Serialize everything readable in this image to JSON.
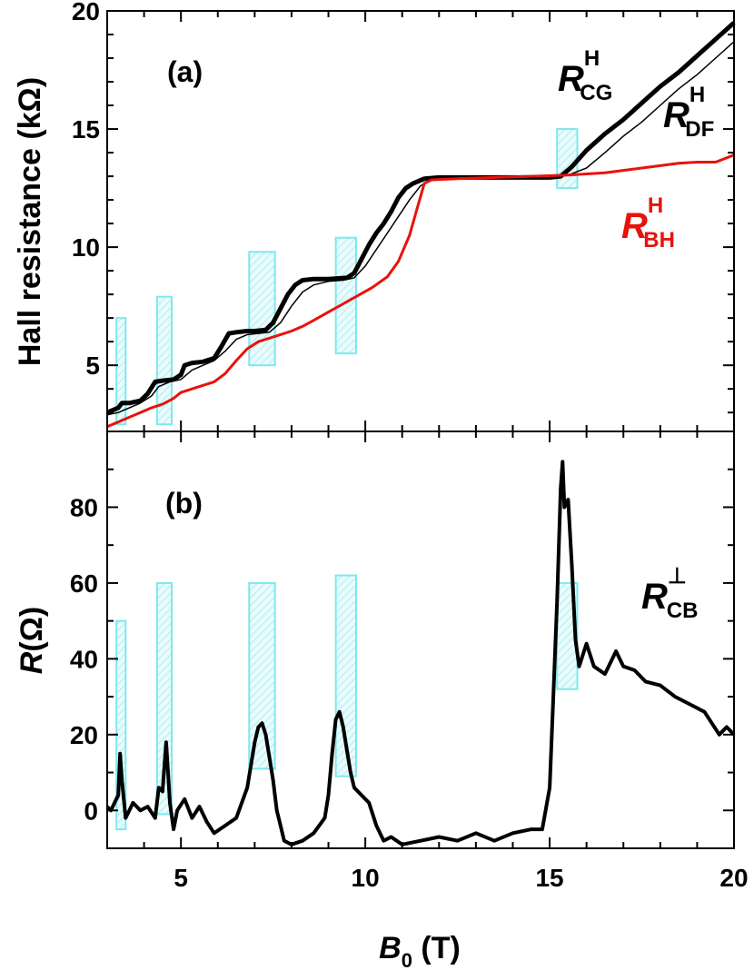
{
  "chart_data": [
    {
      "panel": "(a)",
      "type": "line",
      "ylabel": "Hall resistance (kΩ)",
      "xlim": [
        3,
        20
      ],
      "ylim": [
        2.2,
        20
      ],
      "yticks": [
        5,
        10,
        15,
        20
      ],
      "series": [
        {
          "name": "R_CG^H",
          "label_main": "R",
          "label_sub": "CG",
          "label_sup": "H",
          "color": "#000000",
          "x": [
            3.0,
            3.3,
            3.4,
            3.6,
            3.9,
            4.1,
            4.3,
            4.5,
            4.8,
            5.0,
            5.1,
            5.3,
            5.6,
            5.9,
            6.1,
            6.3,
            6.5,
            6.8,
            7.0,
            7.3,
            7.5,
            7.7,
            7.9,
            8.1,
            8.3,
            8.6,
            9.0,
            9.5,
            9.7,
            9.9,
            10.1,
            10.3,
            10.5,
            10.7,
            10.9,
            11.1,
            11.3,
            11.6,
            12.0,
            12.5,
            13.0,
            14.0,
            15.0,
            15.3,
            15.6,
            16.0,
            16.5,
            17.0,
            17.5,
            18.0,
            18.5,
            19.0,
            19.5,
            20.0
          ],
          "y": [
            3.0,
            3.2,
            3.4,
            3.4,
            3.5,
            3.8,
            4.3,
            4.35,
            4.4,
            4.6,
            5.0,
            5.1,
            5.15,
            5.3,
            5.8,
            6.35,
            6.4,
            6.45,
            6.45,
            6.5,
            6.8,
            7.4,
            8.0,
            8.4,
            8.6,
            8.65,
            8.65,
            8.7,
            8.9,
            9.5,
            10.1,
            10.6,
            11.0,
            11.5,
            12.1,
            12.5,
            12.7,
            12.9,
            12.95,
            12.95,
            12.95,
            12.95,
            12.95,
            13.0,
            13.4,
            14.1,
            14.8,
            15.4,
            16.1,
            16.8,
            17.4,
            18.1,
            18.8,
            19.5
          ]
        },
        {
          "name": "R_DF^H",
          "label_main": "R",
          "label_sub": "DF",
          "label_sup": "H",
          "color": "#000000",
          "x": [
            3.0,
            3.3,
            3.6,
            3.9,
            4.2,
            4.4,
            4.7,
            5.0,
            5.3,
            5.6,
            5.9,
            6.2,
            6.5,
            6.8,
            7.1,
            7.4,
            7.7,
            8.0,
            8.3,
            8.6,
            9.0,
            9.4,
            9.7,
            10.0,
            10.3,
            10.6,
            10.9,
            11.2,
            11.5,
            11.8,
            12.2,
            13.0,
            14.0,
            15.0,
            15.5,
            16.0,
            16.5,
            17.0,
            17.5,
            18.0,
            18.5,
            19.0,
            19.5,
            20.0
          ],
          "y": [
            2.9,
            3.0,
            3.2,
            3.4,
            3.7,
            4.1,
            4.3,
            4.4,
            4.8,
            5.0,
            5.2,
            5.6,
            6.1,
            6.3,
            6.35,
            6.4,
            6.8,
            7.5,
            8.1,
            8.4,
            8.55,
            8.6,
            8.7,
            9.2,
            9.9,
            10.6,
            11.3,
            12.0,
            12.6,
            12.85,
            12.9,
            12.9,
            12.9,
            12.9,
            13.05,
            13.35,
            14.0,
            14.7,
            15.3,
            16.0,
            16.7,
            17.3,
            18.0,
            18.7
          ]
        },
        {
          "name": "R_BH^H",
          "label_main": "R",
          "label_sub": "BH",
          "label_sup": "H",
          "color": "#e8120c",
          "x": [
            3.0,
            3.3,
            3.6,
            3.9,
            4.2,
            4.5,
            4.8,
            5.0,
            5.3,
            5.6,
            5.9,
            6.2,
            6.5,
            6.8,
            7.1,
            7.4,
            7.7,
            8.0,
            8.3,
            8.6,
            9.0,
            9.4,
            9.8,
            10.2,
            10.6,
            10.9,
            11.2,
            11.4,
            11.6,
            11.8,
            12.5,
            13.5,
            14.5,
            15.5,
            16.0,
            16.5,
            17.0,
            17.5,
            18.0,
            18.5,
            19.0,
            19.5,
            20.0
          ],
          "y": [
            2.4,
            2.6,
            2.8,
            3.0,
            3.2,
            3.35,
            3.6,
            3.85,
            4.0,
            4.15,
            4.3,
            4.65,
            5.2,
            5.7,
            6.0,
            6.15,
            6.3,
            6.45,
            6.65,
            6.9,
            7.25,
            7.6,
            7.95,
            8.3,
            8.75,
            9.4,
            10.5,
            11.6,
            12.7,
            12.85,
            12.9,
            12.95,
            13.0,
            13.05,
            13.1,
            13.15,
            13.25,
            13.35,
            13.45,
            13.55,
            13.6,
            13.6,
            13.9
          ]
        }
      ]
    },
    {
      "panel": "(b)",
      "type": "line",
      "xlabel_main": "B",
      "xlabel_sub": "0",
      "xlabel_rest": " (T)",
      "ylabel_main": "R",
      "ylabel_rest": "(Ω)",
      "xlim": [
        3,
        20
      ],
      "ylim": [
        -10,
        100
      ],
      "xticks": [
        5,
        10,
        15,
        20
      ],
      "yticks": [
        0,
        20,
        40,
        60,
        80
      ],
      "series": [
        {
          "name": "R_CB^⊥",
          "label_main": "R",
          "label_sub": "CB",
          "label_sup": "⊥",
          "color": "#000000",
          "x": [
            3.0,
            3.1,
            3.2,
            3.3,
            3.35,
            3.4,
            3.5,
            3.6,
            3.7,
            3.9,
            4.1,
            4.3,
            4.4,
            4.5,
            4.6,
            4.65,
            4.7,
            4.8,
            4.9,
            5.1,
            5.3,
            5.5,
            5.7,
            5.9,
            6.2,
            6.5,
            6.8,
            6.9,
            7.0,
            7.1,
            7.2,
            7.3,
            7.4,
            7.5,
            7.6,
            7.7,
            7.8,
            8.0,
            8.3,
            8.6,
            8.9,
            9.0,
            9.1,
            9.2,
            9.3,
            9.4,
            9.5,
            9.6,
            9.7,
            9.9,
            10.1,
            10.3,
            10.5,
            10.7,
            11.0,
            11.5,
            12.0,
            12.5,
            13.0,
            13.5,
            14.0,
            14.5,
            14.8,
            15.0,
            15.1,
            15.2,
            15.3,
            15.35,
            15.4,
            15.5,
            15.6,
            15.7,
            15.8,
            16.0,
            16.2,
            16.5,
            16.8,
            17.0,
            17.3,
            17.6,
            18.0,
            18.4,
            18.8,
            19.2,
            19.6,
            19.8,
            20.0
          ],
          "y": [
            1,
            0,
            2,
            4,
            15,
            8,
            -2,
            0,
            2,
            0,
            1,
            -2,
            6,
            5,
            18,
            10,
            2,
            -5,
            0,
            3,
            -2,
            1,
            -3,
            -6,
            -4,
            -2,
            6,
            12,
            18,
            22,
            23,
            20,
            14,
            8,
            0,
            -4,
            -8,
            -9,
            -8,
            -6,
            -2,
            4,
            15,
            24,
            26,
            22,
            16,
            10,
            6,
            4,
            2,
            -4,
            -8,
            -7,
            -9,
            -8,
            -7,
            -8,
            -6,
            -8,
            -6,
            -5,
            -5,
            6,
            30,
            55,
            85,
            92,
            80,
            82,
            65,
            45,
            38,
            44,
            38,
            36,
            42,
            38,
            37,
            34,
            33,
            30,
            28,
            26,
            20,
            22,
            20
          ]
        }
      ]
    }
  ],
  "highlight_ranges_T": [
    [
      3.25,
      3.5
    ],
    [
      4.35,
      4.75
    ],
    [
      6.85,
      7.55
    ],
    [
      9.2,
      9.75
    ],
    [
      15.2,
      15.75
    ]
  ],
  "highlight_color": "#7fe8ee"
}
